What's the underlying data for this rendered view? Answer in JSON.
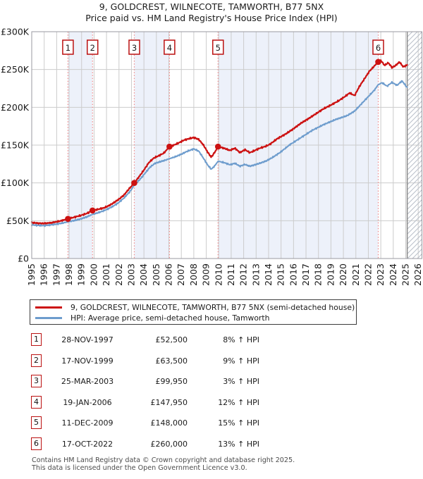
{
  "chart_data": {
    "type": "line",
    "title": "9, GOLDCREST, WILNECOTE, TAMWORTH, B77 5NX",
    "subtitle": "Price paid vs. HM Land Registry's House Price Index (HPI)",
    "xlabel": "",
    "ylabel": "",
    "xlim": [
      1995,
      2026.3
    ],
    "ylim": [
      0,
      300000
    ],
    "grid": true,
    "legend_position": "below",
    "ytick_values": [
      0,
      50000,
      100000,
      150000,
      200000,
      250000,
      300000
    ],
    "ytick_labels": [
      "£0",
      "£50K",
      "£100K",
      "£150K",
      "£200K",
      "£250K",
      "£300K"
    ],
    "xtick_labels": [
      "1995",
      "1996",
      "1997",
      "1998",
      "1999",
      "2000",
      "2001",
      "2002",
      "2003",
      "2004",
      "2005",
      "2006",
      "2007",
      "2008",
      "2009",
      "2010",
      "2011",
      "2012",
      "2013",
      "2014",
      "2015",
      "2016",
      "2017",
      "2018",
      "2019",
      "2020",
      "2021",
      "2022",
      "2023",
      "2024",
      "2025",
      "2026"
    ],
    "shaded_bands": [
      [
        1997.907,
        1999.877
      ],
      [
        2003.227,
        2006.049
      ],
      [
        2009.944,
        2022.794
      ]
    ],
    "hatch_region": [
      2025.12,
      2026.3
    ],
    "colors": {
      "price_paid": "#cc1111",
      "hpi": "#6d9ccd",
      "band": "#edf1fa",
      "grid": "#cccccc",
      "plot_border": "#9a9aa2",
      "sale_guide": "#f08a8a",
      "hatch_line": "#b9bfc9",
      "hatch_edge": "#8a8a8a",
      "badge_border": "#bb1111"
    },
    "series": [
      {
        "name": "9, GOLDCREST, WILNECOTE, TAMWORTH, B77 5NX (semi-detached house)",
        "color": "#cc1111",
        "points": [
          [
            1995.0,
            47500
          ],
          [
            1995.4,
            46800
          ],
          [
            1995.8,
            46300
          ],
          [
            1996.2,
            46600
          ],
          [
            1996.6,
            47300
          ],
          [
            1997.0,
            48600
          ],
          [
            1997.45,
            50300
          ],
          [
            1997.907,
            52500
          ],
          [
            1998.4,
            54600
          ],
          [
            1998.9,
            56800
          ],
          [
            1999.4,
            59500
          ],
          [
            1999.877,
            63500
          ],
          [
            2000.3,
            65000
          ],
          [
            2000.8,
            67000
          ],
          [
            2001.2,
            70000
          ],
          [
            2001.6,
            74000
          ],
          [
            2002.0,
            78500
          ],
          [
            2002.4,
            84000
          ],
          [
            2002.8,
            92000
          ],
          [
            2003.227,
            99950
          ],
          [
            2003.6,
            108000
          ],
          [
            2004.0,
            117000
          ],
          [
            2004.4,
            127000
          ],
          [
            2004.8,
            133000
          ],
          [
            2005.2,
            136000
          ],
          [
            2005.6,
            139500
          ],
          [
            2006.049,
            147950
          ],
          [
            2006.4,
            150000
          ],
          [
            2006.8,
            153000
          ],
          [
            2007.2,
            156500
          ],
          [
            2007.6,
            158500
          ],
          [
            2008.0,
            160000
          ],
          [
            2008.4,
            157500
          ],
          [
            2008.8,
            149500
          ],
          [
            2009.1,
            141000
          ],
          [
            2009.4,
            134000
          ],
          [
            2009.7,
            141000
          ],
          [
            2009.944,
            148000
          ],
          [
            2010.4,
            146000
          ],
          [
            2010.9,
            143000
          ],
          [
            2011.3,
            146000
          ],
          [
            2011.7,
            140000
          ],
          [
            2012.1,
            144000
          ],
          [
            2012.5,
            140000
          ],
          [
            2012.9,
            143000
          ],
          [
            2013.3,
            146000
          ],
          [
            2013.7,
            148000
          ],
          [
            2014.1,
            151000
          ],
          [
            2014.7,
            158500
          ],
          [
            2015.3,
            164000
          ],
          [
            2015.9,
            170500
          ],
          [
            2016.6,
            179000
          ],
          [
            2017.2,
            185000
          ],
          [
            2017.8,
            191500
          ],
          [
            2018.4,
            198000
          ],
          [
            2019.0,
            203000
          ],
          [
            2019.6,
            208500
          ],
          [
            2020.1,
            214000
          ],
          [
            2020.5,
            219000
          ],
          [
            2020.9,
            215500
          ],
          [
            2021.3,
            228000
          ],
          [
            2021.7,
            238000
          ],
          [
            2022.1,
            248000
          ],
          [
            2022.45,
            254000
          ],
          [
            2022.794,
            260000
          ],
          [
            2023.0,
            262000
          ],
          [
            2023.3,
            255500
          ],
          [
            2023.6,
            259000
          ],
          [
            2023.9,
            252500
          ],
          [
            2024.2,
            255500
          ],
          [
            2024.5,
            260000
          ],
          [
            2024.8,
            253500
          ],
          [
            2025.12,
            256000
          ]
        ]
      },
      {
        "name": "HPI: Average price, semi-detached house, Tamworth",
        "color": "#6d9ccd",
        "points": [
          [
            1995.0,
            44500
          ],
          [
            1995.5,
            43800
          ],
          [
            1996.0,
            43500
          ],
          [
            1996.5,
            44400
          ],
          [
            1997.0,
            45500
          ],
          [
            1997.5,
            47000
          ],
          [
            1997.907,
            48600
          ],
          [
            1998.4,
            50200
          ],
          [
            1998.9,
            52200
          ],
          [
            1999.4,
            55000
          ],
          [
            1999.877,
            58300
          ],
          [
            2000.4,
            61000
          ],
          [
            2000.9,
            64000
          ],
          [
            2001.4,
            68000
          ],
          [
            2001.9,
            73000
          ],
          [
            2002.4,
            80000
          ],
          [
            2002.9,
            89000
          ],
          [
            2003.227,
            97000
          ],
          [
            2003.7,
            105000
          ],
          [
            2004.1,
            113000
          ],
          [
            2004.5,
            121000
          ],
          [
            2004.9,
            126000
          ],
          [
            2005.3,
            128000
          ],
          [
            2005.7,
            130000
          ],
          [
            2006.049,
            132100
          ],
          [
            2006.5,
            134500
          ],
          [
            2007.0,
            138000
          ],
          [
            2007.5,
            142000
          ],
          [
            2008.0,
            145000
          ],
          [
            2008.4,
            142000
          ],
          [
            2008.8,
            132000
          ],
          [
            2009.1,
            124000
          ],
          [
            2009.4,
            118000
          ],
          [
            2009.7,
            123000
          ],
          [
            2009.944,
            128700
          ],
          [
            2010.4,
            127000
          ],
          [
            2010.9,
            124000
          ],
          [
            2011.3,
            126000
          ],
          [
            2011.7,
            122000
          ],
          [
            2012.1,
            124500
          ],
          [
            2012.5,
            122000
          ],
          [
            2012.9,
            124000
          ],
          [
            2013.3,
            126000
          ],
          [
            2013.8,
            129000
          ],
          [
            2014.3,
            133500
          ],
          [
            2014.9,
            140000
          ],
          [
            2015.7,
            150500
          ],
          [
            2016.6,
            160000
          ],
          [
            2017.5,
            169500
          ],
          [
            2018.4,
            177000
          ],
          [
            2019.4,
            184000
          ],
          [
            2020.3,
            189000
          ],
          [
            2020.9,
            195000
          ],
          [
            2021.3,
            202000
          ],
          [
            2021.7,
            209000
          ],
          [
            2022.1,
            216000
          ],
          [
            2022.5,
            223000
          ],
          [
            2022.794,
            230000
          ],
          [
            2023.1,
            232500
          ],
          [
            2023.5,
            228000
          ],
          [
            2023.9,
            233000
          ],
          [
            2024.3,
            229000
          ],
          [
            2024.7,
            235000
          ],
          [
            2025.12,
            226000
          ]
        ]
      }
    ]
  },
  "legend": {
    "items": [
      {
        "label": "9, GOLDCREST, WILNECOTE, TAMWORTH, B77 5NX (semi-detached house)",
        "color": "#cc1111"
      },
      {
        "label": "HPI: Average price, semi-detached house, Tamworth",
        "color": "#6d9ccd"
      }
    ]
  },
  "sales": [
    {
      "num": "1",
      "date": "28-NOV-1997",
      "price": "£52,500",
      "vs_hpi": "8% ↑ HPI",
      "year": 1997.907,
      "value": 52500
    },
    {
      "num": "2",
      "date": "17-NOV-1999",
      "price": "£63,500",
      "vs_hpi": "9% ↑ HPI",
      "year": 1999.877,
      "value": 63500
    },
    {
      "num": "3",
      "date": "25-MAR-2003",
      "price": "£99,950",
      "vs_hpi": "3% ↑ HPI",
      "year": 2003.227,
      "value": 99950
    },
    {
      "num": "4",
      "date": "19-JAN-2006",
      "price": "£147,950",
      "vs_hpi": "12% ↑ HPI",
      "year": 2006.049,
      "value": 147950
    },
    {
      "num": "5",
      "date": "11-DEC-2009",
      "price": "£148,000",
      "vs_hpi": "15% ↑ HPI",
      "year": 2009.944,
      "value": 148000
    },
    {
      "num": "6",
      "date": "17-OCT-2022",
      "price": "£260,000",
      "vs_hpi": "13% ↑ HPI",
      "year": 2022.794,
      "value": 260000
    }
  ],
  "footer": {
    "line1": "Contains HM Land Registry data © Crown copyright and database right 2025.",
    "line2": "This data is licensed under the Open Government Licence v3.0."
  }
}
